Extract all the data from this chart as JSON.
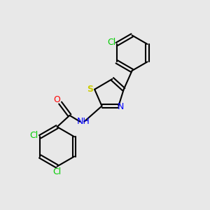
{
  "background_color": "#e8e8e8",
  "atom_colors": {
    "C": "#000000",
    "N": "#0000ff",
    "O": "#ff0000",
    "S": "#cccc00",
    "Cl": "#00cc00",
    "H": "#000000"
  },
  "bond_color": "#000000",
  "font_size": 9,
  "figsize": [
    3.0,
    3.0
  ],
  "dpi": 100
}
